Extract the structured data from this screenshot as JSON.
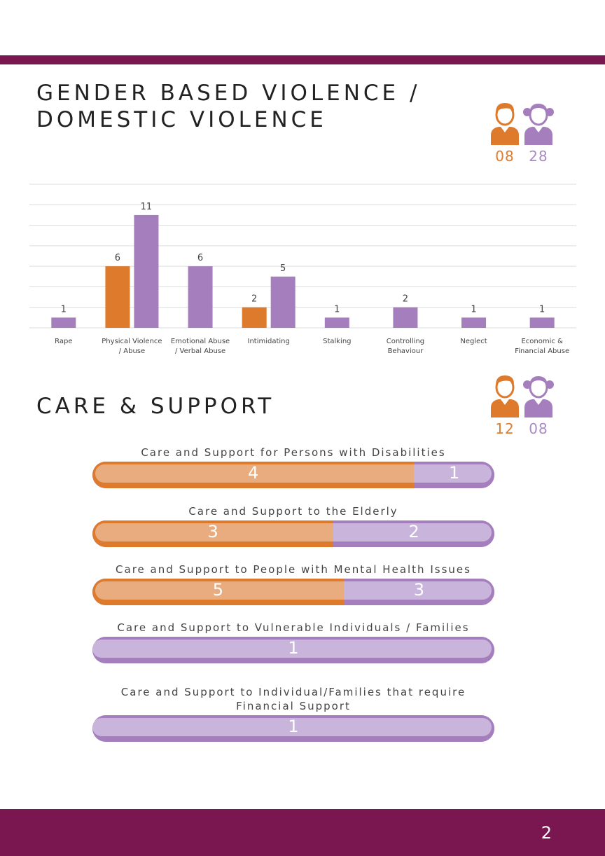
{
  "section1": {
    "title_line1": "GENDER BASED VIOLENCE /",
    "title_line2": "DOMESTIC VIOLENCE",
    "male_count": "08",
    "female_count": "28"
  },
  "section2": {
    "title": "CARE & SUPPORT",
    "male_count": "12",
    "female_count": "08"
  },
  "colors": {
    "male": "#dd7a2b",
    "female": "#a57fbd",
    "accent": "#7a1650"
  },
  "icons": {
    "male": "boy-icon",
    "female": "girl-icon"
  },
  "chart_data": [
    {
      "type": "bar",
      "categories": [
        [
          "Rape"
        ],
        [
          "Physical Violence",
          "/ Abuse"
        ],
        [
          "Emotional Abuse",
          "/ Verbal Abuse"
        ],
        [
          "Intimidating"
        ],
        [
          "Stalking"
        ],
        [
          "Controlling",
          "Behaviour"
        ],
        [
          "Neglect"
        ],
        [
          "Economic &",
          "Financial Abuse"
        ]
      ],
      "series": [
        {
          "values": [
            null,
            6,
            null,
            2,
            null,
            null,
            null,
            null
          ],
          "color": "#dd7a2b"
        },
        {
          "values": [
            1,
            11,
            6,
            5,
            1,
            2,
            1,
            1
          ],
          "color": "#a57fbd"
        }
      ],
      "ylim": [
        0,
        14
      ],
      "grid": true
    },
    {
      "type": "bar",
      "orientation": "horizontal-stacked",
      "categories": [
        "Care and Support for Persons with Disabilities",
        "Care and Support to the Elderly",
        "Care and Support to People with Mental Health Issues",
        "Care and Support to Vulnerable Individuals / Families",
        "Care and Support to Individual/Families that require Financial Support"
      ],
      "series": [
        {
          "values": [
            4,
            3,
            5,
            null,
            null
          ],
          "color": "#dd7a2b"
        },
        {
          "values": [
            1,
            2,
            3,
            1,
            1
          ],
          "color": "#a57fbd"
        }
      ]
    }
  ],
  "page_number": "2"
}
